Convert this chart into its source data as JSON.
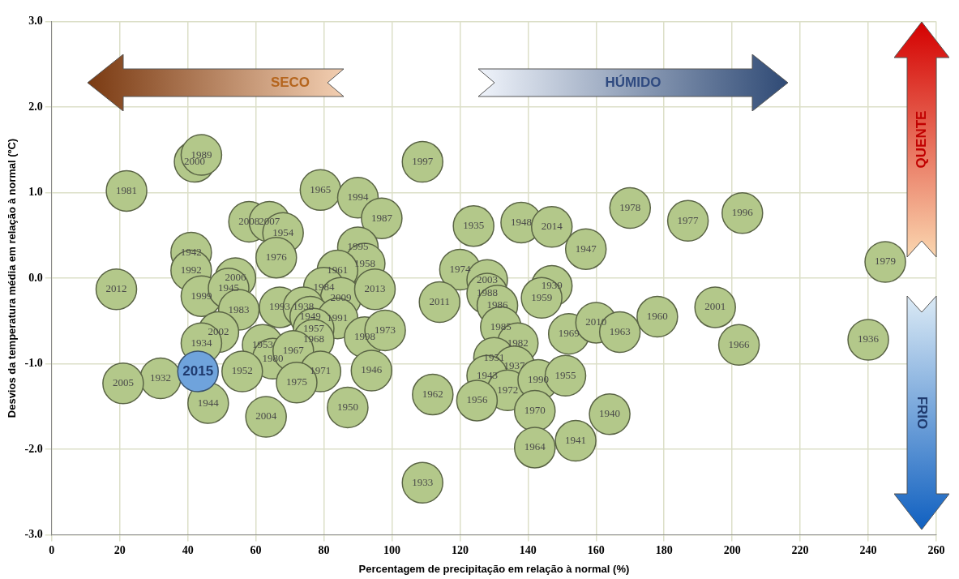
{
  "chart_data": {
    "type": "scatter",
    "xlabel": "Percentagem de precipitação em relação à normal (%)",
    "ylabel": "Desvios da temperatura média em relação à normal (ºC)",
    "xlim": [
      0,
      260
    ],
    "xticks": [
      0,
      20,
      40,
      60,
      80,
      100,
      120,
      140,
      160,
      180,
      200,
      220,
      240,
      260
    ],
    "ylim": [
      -3,
      3
    ],
    "yticks": [
      {
        "value": -3,
        "label": "-3.0"
      },
      {
        "value": -2,
        "label": "-2.0"
      },
      {
        "value": -1,
        "label": "-1.0"
      },
      {
        "value": 0,
        "label": "0.0"
      },
      {
        "value": 1,
        "label": "1.0"
      },
      {
        "value": 2,
        "label": "2.0"
      },
      {
        "value": 3,
        "label": "3.0"
      }
    ],
    "grid": true,
    "legend": false,
    "marker": "circle",
    "series": [
      {
        "color": "#b3c88a",
        "x": [
          22,
          42,
          44,
          79,
          90,
          97,
          58,
          64,
          68,
          66,
          41,
          41,
          44,
          54,
          52,
          55,
          19,
          90,
          92,
          84,
          80,
          85,
          95,
          67,
          74,
          76,
          84,
          77,
          77,
          92,
          98,
          49,
          44,
          62,
          65,
          71,
          32,
          21,
          56,
          79,
          72,
          94,
          46,
          63,
          87,
          109,
          124,
          138,
          147,
          157,
          170,
          187,
          203,
          245,
          120,
          128,
          128,
          131,
          114,
          147,
          144,
          132,
          137,
          152,
          160,
          167,
          178,
          195,
          202,
          240,
          130,
          136,
          128,
          134,
          143,
          151,
          112,
          125,
          142,
          164,
          142,
          154,
          109
        ],
        "values": [
          1.02,
          1.36,
          1.44,
          1.03,
          0.94,
          0.7,
          0.66,
          0.66,
          0.53,
          0.24,
          0.3,
          0.09,
          -0.21,
          0.0,
          -0.12,
          -0.37,
          -0.13,
          0.36,
          0.17,
          0.09,
          -0.11,
          -0.23,
          -0.13,
          -0.34,
          -0.34,
          -0.45,
          -0.47,
          -0.59,
          -0.72,
          -0.69,
          -0.61,
          -0.63,
          -0.76,
          -0.78,
          -0.94,
          -0.85,
          -1.17,
          -1.23,
          -1.09,
          -1.09,
          -1.22,
          -1.08,
          -1.46,
          -1.62,
          -1.51,
          1.36,
          0.61,
          0.65,
          0.6,
          0.34,
          0.82,
          0.67,
          0.76,
          0.19,
          0.1,
          -0.02,
          -0.18,
          -0.32,
          -0.28,
          -0.09,
          -0.23,
          -0.57,
          -0.76,
          -0.65,
          -0.52,
          -0.63,
          -0.45,
          -0.34,
          -0.78,
          -0.72,
          -0.93,
          -1.03,
          -1.14,
          -1.31,
          -1.19,
          -1.14,
          -1.36,
          -1.43,
          -1.55,
          -1.59,
          -1.98,
          -1.9,
          -2.39
        ]
      },
      {
        "color": "#6fa3dc",
        "x": [
          43
        ],
        "values": [
          -1.09
        ]
      }
    ],
    "annotations": [
      "SECO",
      "HÚMIDO",
      "QUENTE",
      "FRIO",
      {
        "text": "1981",
        "x": 22,
        "y": 1.02
      },
      {
        "text": "2000",
        "x": 42,
        "y": 1.36
      },
      {
        "text": "1989",
        "x": 44,
        "y": 1.44
      },
      {
        "text": "1965",
        "x": 79,
        "y": 1.03
      },
      {
        "text": "1994",
        "x": 90,
        "y": 0.94
      },
      {
        "text": "1987",
        "x": 97,
        "y": 0.7
      },
      {
        "text": "2008",
        "x": 58,
        "y": 0.66
      },
      {
        "text": "2007",
        "x": 64,
        "y": 0.66
      },
      {
        "text": "1954",
        "x": 68,
        "y": 0.53
      },
      {
        "text": "1976",
        "x": 66,
        "y": 0.24
      },
      {
        "text": "1942",
        "x": 41,
        "y": 0.3
      },
      {
        "text": "1992",
        "x": 41,
        "y": 0.09
      },
      {
        "text": "1999",
        "x": 44,
        "y": -0.21
      },
      {
        "text": "2006",
        "x": 54,
        "y": 0.0
      },
      {
        "text": "1945",
        "x": 52,
        "y": -0.12
      },
      {
        "text": "1983",
        "x": 55,
        "y": -0.37
      },
      {
        "text": "2012",
        "x": 19,
        "y": -0.13
      },
      {
        "text": "1995",
        "x": 90,
        "y": 0.36
      },
      {
        "text": "1958",
        "x": 92,
        "y": 0.17
      },
      {
        "text": "1961",
        "x": 84,
        "y": 0.09
      },
      {
        "text": "1984",
        "x": 80,
        "y": -0.11
      },
      {
        "text": "2009",
        "x": 85,
        "y": -0.23
      },
      {
        "text": "2013",
        "x": 95,
        "y": -0.13
      },
      {
        "text": "1993",
        "x": 67,
        "y": -0.34
      },
      {
        "text": "1938",
        "x": 74,
        "y": -0.34
      },
      {
        "text": "1949",
        "x": 76,
        "y": -0.45
      },
      {
        "text": "1991",
        "x": 84,
        "y": -0.47
      },
      {
        "text": "1957",
        "x": 77,
        "y": -0.59
      },
      {
        "text": "1968",
        "x": 77,
        "y": -0.72
      },
      {
        "text": "1998",
        "x": 92,
        "y": -0.69
      },
      {
        "text": "1973",
        "x": 98,
        "y": -0.61
      },
      {
        "text": "2002",
        "x": 49,
        "y": -0.63
      },
      {
        "text": "1934",
        "x": 44,
        "y": -0.76
      },
      {
        "text": "1953",
        "x": 62,
        "y": -0.78
      },
      {
        "text": "1980",
        "x": 65,
        "y": -0.94
      },
      {
        "text": "1967",
        "x": 71,
        "y": -0.85
      },
      {
        "text": "1932",
        "x": 32,
        "y": -1.17
      },
      {
        "text": "2005",
        "x": 21,
        "y": -1.23
      },
      {
        "text": "1952",
        "x": 56,
        "y": -1.09
      },
      {
        "text": "1971",
        "x": 79,
        "y": -1.09
      },
      {
        "text": "1975",
        "x": 72,
        "y": -1.22
      },
      {
        "text": "1946",
        "x": 94,
        "y": -1.08
      },
      {
        "text": "1944",
        "x": 46,
        "y": -1.46
      },
      {
        "text": "2004",
        "x": 63,
        "y": -1.62
      },
      {
        "text": "1950",
        "x": 87,
        "y": -1.51
      },
      {
        "text": "1997",
        "x": 109,
        "y": 1.36
      },
      {
        "text": "1935",
        "x": 124,
        "y": 0.61
      },
      {
        "text": "1948",
        "x": 138,
        "y": 0.65
      },
      {
        "text": "2014",
        "x": 147,
        "y": 0.6
      },
      {
        "text": "1947",
        "x": 157,
        "y": 0.34
      },
      {
        "text": "1978",
        "x": 170,
        "y": 0.82
      },
      {
        "text": "1977",
        "x": 187,
        "y": 0.67
      },
      {
        "text": "1996",
        "x": 203,
        "y": 0.76
      },
      {
        "text": "1979",
        "x": 245,
        "y": 0.19
      },
      {
        "text": "1974",
        "x": 120,
        "y": 0.1
      },
      {
        "text": "2003",
        "x": 128,
        "y": -0.02
      },
      {
        "text": "1988",
        "x": 128,
        "y": -0.18
      },
      {
        "text": "1986",
        "x": 131,
        "y": -0.32
      },
      {
        "text": "2011",
        "x": 114,
        "y": -0.28
      },
      {
        "text": "1939",
        "x": 147,
        "y": -0.09
      },
      {
        "text": "1959",
        "x": 144,
        "y": -0.23
      },
      {
        "text": "1985",
        "x": 132,
        "y": -0.57
      },
      {
        "text": "1982",
        "x": 137,
        "y": -0.76
      },
      {
        "text": "1969",
        "x": 152,
        "y": -0.65
      },
      {
        "text": "2010",
        "x": 160,
        "y": -0.52
      },
      {
        "text": "1963",
        "x": 167,
        "y": -0.63
      },
      {
        "text": "1960",
        "x": 178,
        "y": -0.45
      },
      {
        "text": "2001",
        "x": 195,
        "y": -0.34
      },
      {
        "text": "1966",
        "x": 202,
        "y": -0.78
      },
      {
        "text": "1936",
        "x": 240,
        "y": -0.72
      },
      {
        "text": "1951",
        "x": 130,
        "y": -0.93
      },
      {
        "text": "1937",
        "x": 136,
        "y": -1.03
      },
      {
        "text": "1943",
        "x": 128,
        "y": -1.14
      },
      {
        "text": "1972",
        "x": 134,
        "y": -1.31
      },
      {
        "text": "1990",
        "x": 143,
        "y": -1.19
      },
      {
        "text": "1955",
        "x": 151,
        "y": -1.14
      },
      {
        "text": "1962",
        "x": 112,
        "y": -1.36
      },
      {
        "text": "1956",
        "x": 125,
        "y": -1.43
      },
      {
        "text": "1970",
        "x": 142,
        "y": -1.55
      },
      {
        "text": "1940",
        "x": 164,
        "y": -1.59
      },
      {
        "text": "1964",
        "x": 142,
        "y": -1.98
      },
      {
        "text": "1941",
        "x": 154,
        "y": -1.9
      },
      {
        "text": "1933",
        "x": 109,
        "y": -2.39
      },
      {
        "text": "2015",
        "x": 43,
        "y": -1.09
      }
    ]
  }
}
